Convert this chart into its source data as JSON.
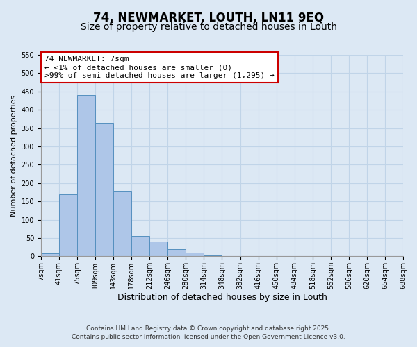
{
  "title": "74, NEWMARKET, LOUTH, LN11 9EQ",
  "subtitle": "Size of property relative to detached houses in Louth",
  "xlabel": "Distribution of detached houses by size in Louth",
  "ylabel": "Number of detached properties",
  "bar_values": [
    8,
    170,
    440,
    365,
    178,
    55,
    40,
    20,
    10,
    3,
    1,
    0,
    0,
    0,
    0,
    0,
    0,
    0,
    0,
    0
  ],
  "bar_labels": [
    "7sqm",
    "41sqm",
    "75sqm",
    "109sqm",
    "143sqm",
    "178sqm",
    "212sqm",
    "246sqm",
    "280sqm",
    "314sqm",
    "348sqm",
    "382sqm",
    "416sqm",
    "450sqm",
    "484sqm",
    "518sqm",
    "552sqm",
    "586sqm",
    "620sqm",
    "654sqm",
    "688sqm"
  ],
  "bar_color": "#aec6e8",
  "bar_edge_color": "#5590bf",
  "ylim": [
    0,
    550
  ],
  "yticks": [
    0,
    50,
    100,
    150,
    200,
    250,
    300,
    350,
    400,
    450,
    500,
    550
  ],
  "annotation_title": "74 NEWMARKET: 7sqm",
  "annotation_line1": "← <1% of detached houses are smaller (0)",
  "annotation_line2": ">99% of semi-detached houses are larger (1,295) →",
  "annotation_box_facecolor": "#ffffff",
  "annotation_box_edgecolor": "#cc0000",
  "grid_color": "#c0d4e8",
  "background_color": "#dce8f4",
  "plot_bg_color": "#dce8f4",
  "footer_line1": "Contains HM Land Registry data © Crown copyright and database right 2025.",
  "footer_line2": "Contains public sector information licensed under the Open Government Licence v3.0.",
  "title_fontsize": 12,
  "subtitle_fontsize": 10,
  "xlabel_fontsize": 9,
  "ylabel_fontsize": 8,
  "tick_fontsize": 7,
  "annotation_fontsize": 8,
  "footer_fontsize": 6.5
}
